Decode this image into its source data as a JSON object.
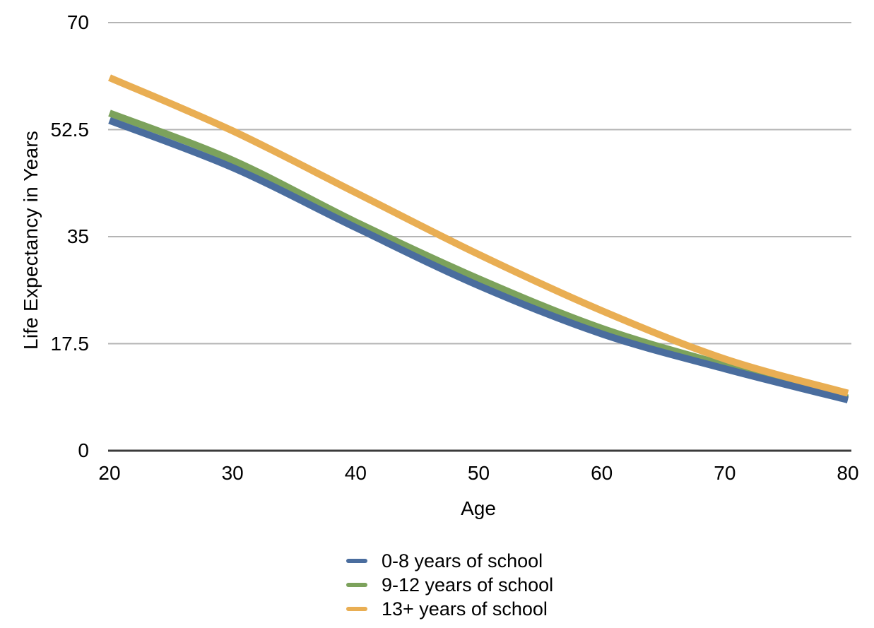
{
  "chart_data": {
    "type": "line",
    "title": "",
    "xlabel": "Age",
    "ylabel": "Life Expectancy in Years",
    "x": [
      20,
      30,
      40,
      50,
      60,
      70,
      80
    ],
    "xtick_labels": [
      "20",
      "30",
      "40",
      "50",
      "60",
      "70",
      "80"
    ],
    "yticks": [
      0,
      17.5,
      35,
      52.5,
      70
    ],
    "ytick_labels": [
      "0",
      "17.5",
      "35",
      "52.5",
      "70"
    ],
    "ylim": [
      0,
      70
    ],
    "xlim": [
      20,
      80
    ],
    "grid": "horizontal-only",
    "legend_position": "bottom-center",
    "series": [
      {
        "name": "0-8 years of school",
        "color": "#4a6d9e",
        "values": [
          54.0,
          46.3,
          36.5,
          27.0,
          19.1,
          13.4,
          8.3
        ]
      },
      {
        "name": "9-12 years of school",
        "color": "#7ca25c",
        "values": [
          55.2,
          47.5,
          37.4,
          28.1,
          20.0,
          14.0,
          8.6
        ]
      },
      {
        "name": "13+ years of school",
        "color": "#e9ae53",
        "values": [
          61.0,
          52.3,
          42.2,
          32.1,
          22.9,
          15.0,
          9.4
        ]
      }
    ],
    "colors": {
      "gridline": "#b4b4b4",
      "axis_line": "#3b3b3b",
      "text": "#000000",
      "background": "#ffffff"
    }
  }
}
